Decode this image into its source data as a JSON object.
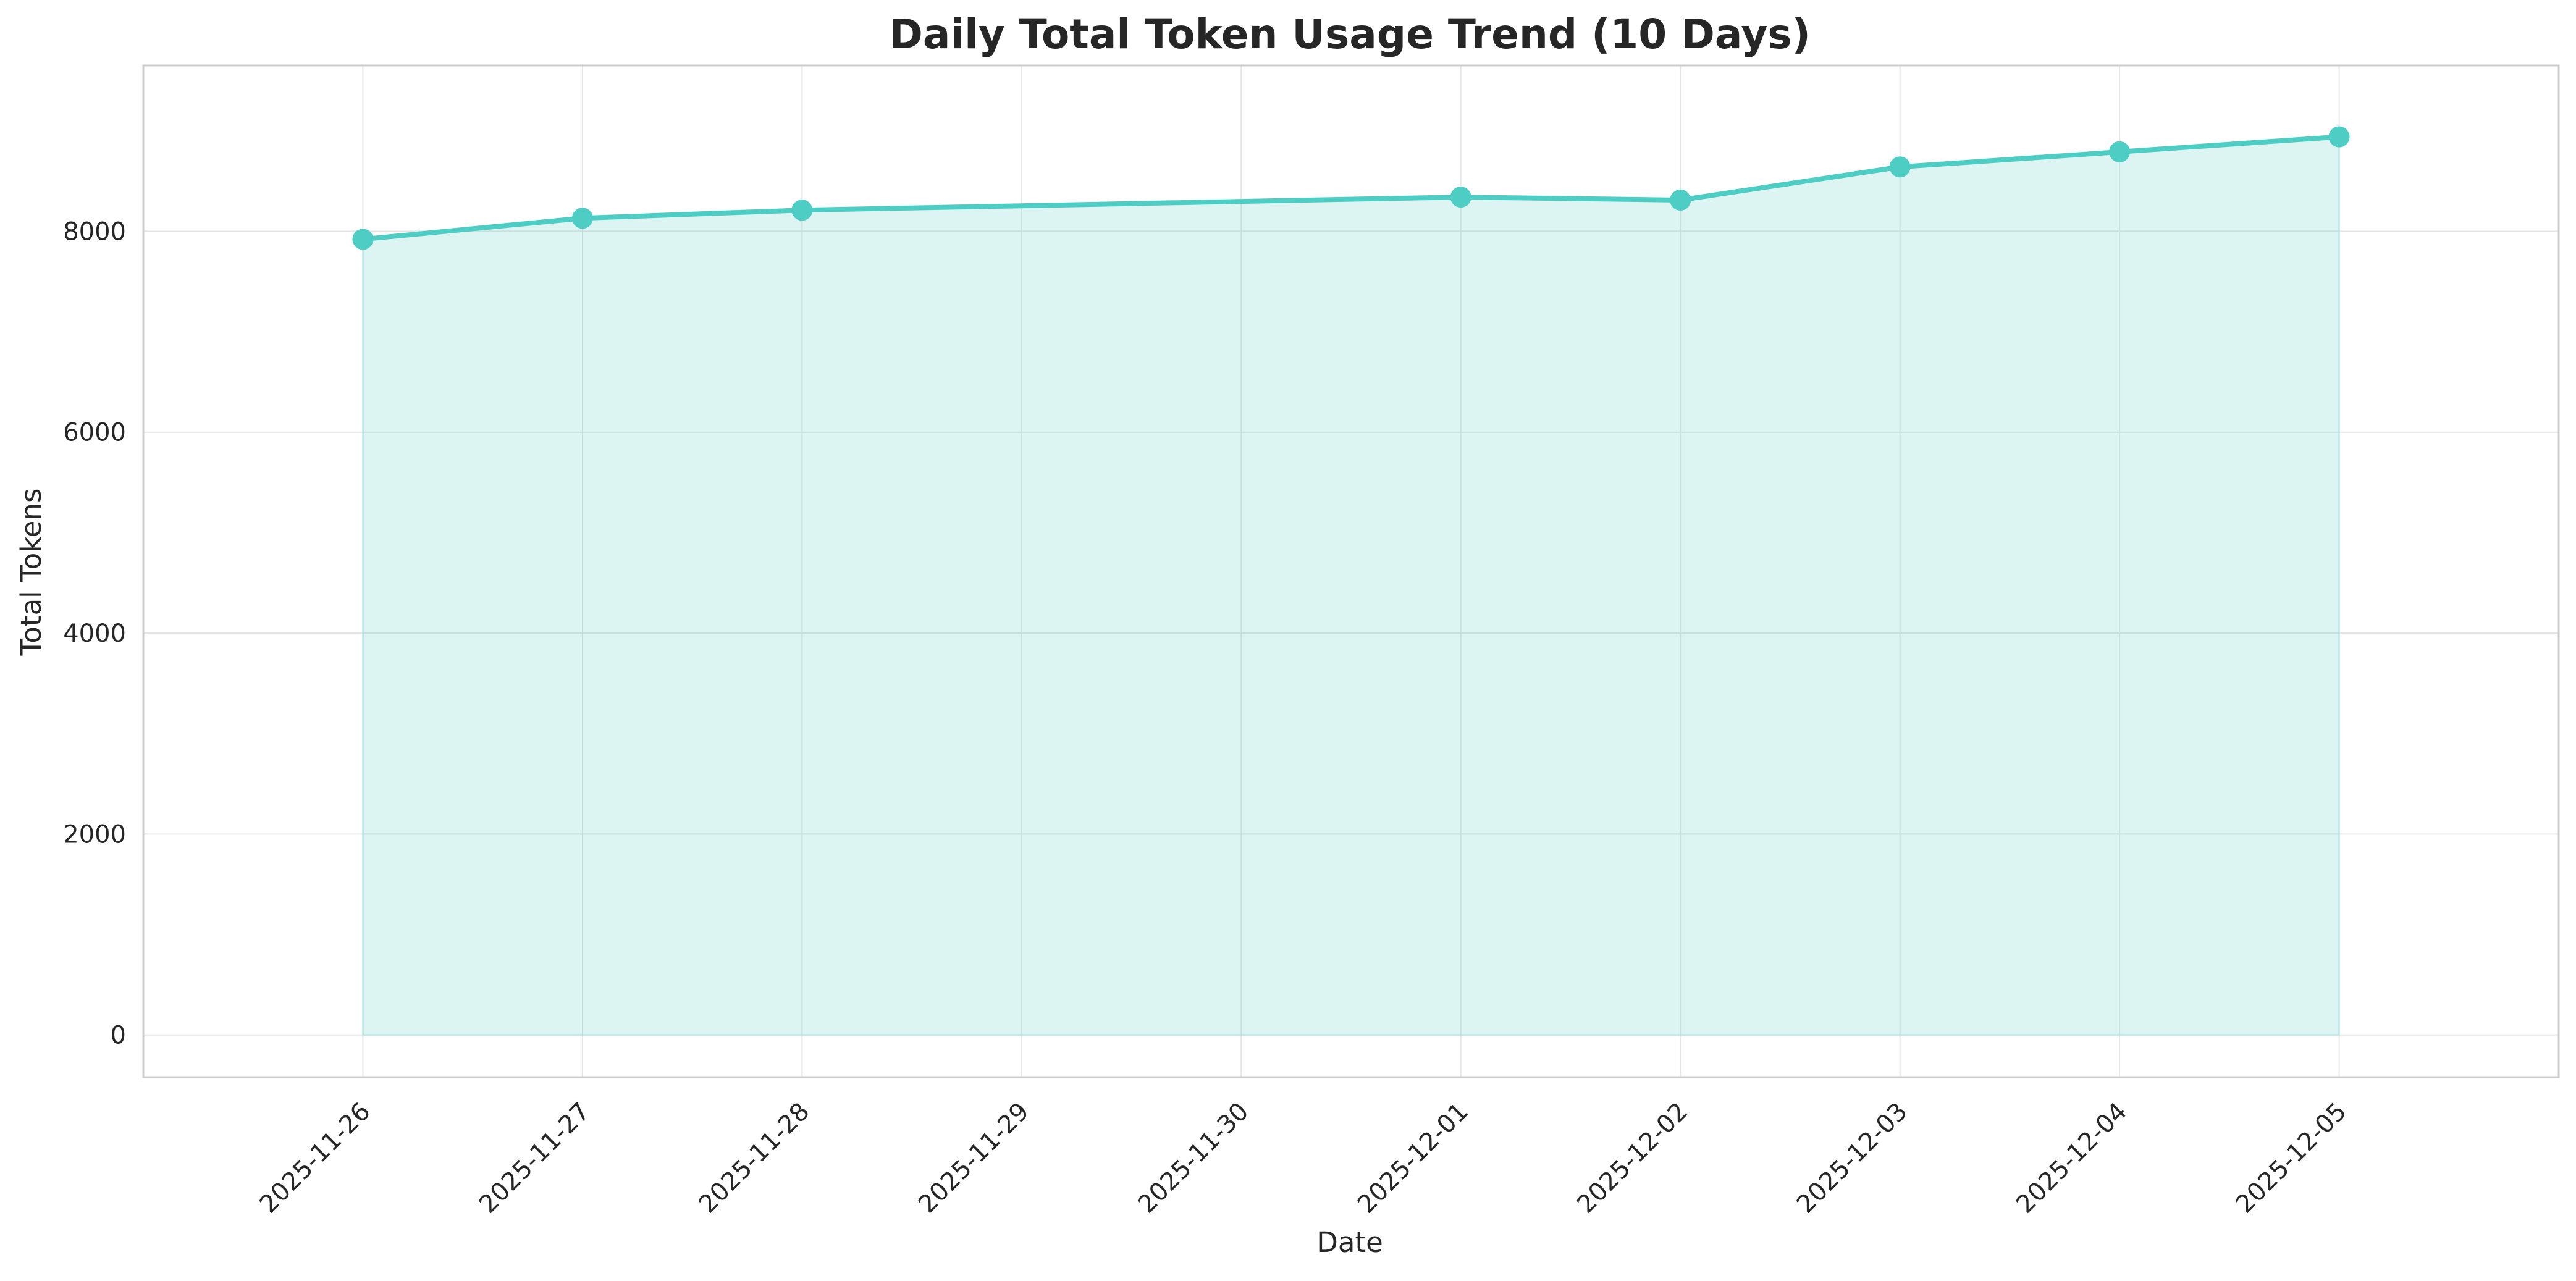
{
  "chart_data": {
    "type": "area",
    "title": "Daily Total Token Usage Trend (10 Days)",
    "xlabel": "Date",
    "ylabel": "Total Tokens",
    "x": [
      "2025-11-26",
      "2025-11-27",
      "2025-11-28",
      "2025-12-01",
      "2025-12-02",
      "2025-12-03",
      "2025-12-04",
      "2025-12-05"
    ],
    "x_ticks": [
      "2025-11-26",
      "2025-11-27",
      "2025-11-28",
      "2025-11-29",
      "2025-11-30",
      "2025-12-01",
      "2025-12-02",
      "2025-12-03",
      "2025-12-04",
      "2025-12-05"
    ],
    "series": [
      {
        "values": [
          7920,
          8130,
          8210,
          8340,
          8310,
          8640,
          8790,
          8940
        ]
      }
    ],
    "y_ticks": [
      0,
      2000,
      4000,
      6000,
      8000
    ],
    "ylim": [
      -420,
      9650
    ],
    "xlim": [
      "2025-11-25",
      "2025-12-06"
    ],
    "grid": true,
    "legend": "none",
    "colors": {
      "line": "#4ECDC4",
      "fill": "#4ECDC4",
      "grid": "#e5e5e5",
      "frame": "#cccccc",
      "text": "#262626"
    }
  }
}
